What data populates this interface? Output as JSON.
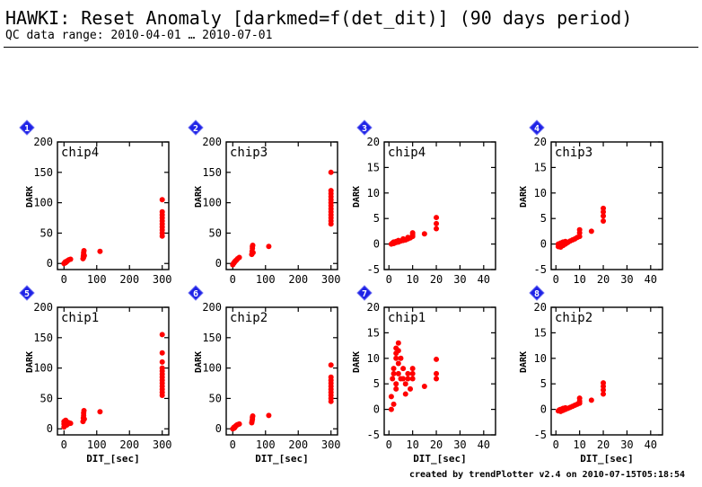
{
  "header": {
    "title": "HAWKI: Reset Anomaly [darkmed=f(det_dit)] (90 days period)",
    "subtitle": "QC data range: 2010-04-01 … 2010-07-01"
  },
  "footer": {
    "credit": "created by trendPlotter v2.4 on 2010-07-15T05:18:54"
  },
  "colors": {
    "marker": "#ff0000",
    "badge": "#1e22e6",
    "axis": "#000000"
  },
  "chart_data": [
    {
      "badge": "1",
      "type": "scatter",
      "label": "chip4",
      "ylabel": "DARK",
      "xlabel": "",
      "xlim": [
        -20,
        320
      ],
      "ylim": [
        -10,
        200
      ],
      "xticks": [
        0,
        100,
        200,
        300
      ],
      "yticks": [
        0,
        50,
        100,
        150,
        200
      ],
      "points": [
        [
          0,
          0
        ],
        [
          2,
          1
        ],
        [
          3,
          2
        ],
        [
          4,
          1
        ],
        [
          5,
          3
        ],
        [
          6,
          2
        ],
        [
          8,
          3
        ],
        [
          10,
          4
        ],
        [
          12,
          5
        ],
        [
          15,
          6
        ],
        [
          20,
          7
        ],
        [
          58,
          8
        ],
        [
          59,
          12
        ],
        [
          60,
          15
        ],
        [
          60,
          18
        ],
        [
          61,
          21
        ],
        [
          62,
          13
        ],
        [
          60,
          10
        ],
        [
          110,
          20
        ],
        [
          300,
          45
        ],
        [
          300,
          50
        ],
        [
          300,
          55
        ],
        [
          300,
          60
        ],
        [
          300,
          65
        ],
        [
          300,
          70
        ],
        [
          300,
          75
        ],
        [
          300,
          80
        ],
        [
          300,
          85
        ],
        [
          300,
          105
        ]
      ]
    },
    {
      "badge": "2",
      "type": "scatter",
      "label": "chip3",
      "ylabel": "DARK",
      "xlabel": "",
      "xlim": [
        -20,
        320
      ],
      "ylim": [
        -10,
        200
      ],
      "xticks": [
        0,
        100,
        200,
        300
      ],
      "yticks": [
        0,
        50,
        100,
        150,
        200
      ],
      "points": [
        [
          0,
          -2
        ],
        [
          2,
          0
        ],
        [
          4,
          1
        ],
        [
          5,
          2
        ],
        [
          6,
          3
        ],
        [
          8,
          4
        ],
        [
          10,
          5
        ],
        [
          12,
          6
        ],
        [
          15,
          8
        ],
        [
          20,
          10
        ],
        [
          58,
          15
        ],
        [
          59,
          20
        ],
        [
          60,
          25
        ],
        [
          60,
          28
        ],
        [
          61,
          30
        ],
        [
          62,
          18
        ],
        [
          110,
          28
        ],
        [
          300,
          65
        ],
        [
          300,
          70
        ],
        [
          300,
          75
        ],
        [
          300,
          80
        ],
        [
          300,
          85
        ],
        [
          300,
          90
        ],
        [
          300,
          95
        ],
        [
          300,
          100
        ],
        [
          300,
          105
        ],
        [
          300,
          110
        ],
        [
          300,
          115
        ],
        [
          300,
          120
        ],
        [
          300,
          150
        ]
      ]
    },
    {
      "badge": "3",
      "type": "scatter",
      "label": "chip4",
      "ylabel": "DARK",
      "xlabel": "",
      "xlim": [
        -2,
        45
      ],
      "ylim": [
        -5,
        20
      ],
      "xticks": [
        0,
        10,
        20,
        30,
        40
      ],
      "yticks": [
        -5,
        0,
        5,
        10,
        15,
        20
      ],
      "points": [
        [
          1,
          0
        ],
        [
          1.5,
          0.2
        ],
        [
          2,
          0.1
        ],
        [
          2,
          0.4
        ],
        [
          3,
          0.3
        ],
        [
          3,
          0.5
        ],
        [
          4,
          0.4
        ],
        [
          4,
          0.7
        ],
        [
          5,
          0.6
        ],
        [
          6,
          0.7
        ],
        [
          6,
          1
        ],
        [
          7,
          0.8
        ],
        [
          8,
          1
        ],
        [
          8,
          1.3
        ],
        [
          9,
          1.2
        ],
        [
          10,
          1.5
        ],
        [
          10,
          1.8
        ],
        [
          10,
          2.2
        ],
        [
          15,
          2
        ],
        [
          20,
          3
        ],
        [
          20,
          4
        ],
        [
          20,
          5.2
        ]
      ]
    },
    {
      "badge": "4",
      "type": "scatter",
      "label": "chip3",
      "ylabel": "DARK",
      "xlabel": "",
      "xlim": [
        -2,
        45
      ],
      "ylim": [
        -5,
        20
      ],
      "xticks": [
        0,
        10,
        20,
        30,
        40
      ],
      "yticks": [
        -5,
        0,
        5,
        10,
        15,
        20
      ],
      "points": [
        [
          1,
          -0.5
        ],
        [
          1,
          0
        ],
        [
          1.5,
          -0.2
        ],
        [
          2,
          -0.6
        ],
        [
          2,
          0.2
        ],
        [
          3,
          -0.3
        ],
        [
          3,
          0.4
        ],
        [
          4,
          0
        ],
        [
          4,
          0.5
        ],
        [
          5,
          0.3
        ],
        [
          6,
          0.6
        ],
        [
          7,
          0.8
        ],
        [
          8,
          1
        ],
        [
          9,
          1.3
        ],
        [
          10,
          1.5
        ],
        [
          10,
          2.2
        ],
        [
          10,
          2.8
        ],
        [
          15,
          2.5
        ],
        [
          20,
          4.5
        ],
        [
          20,
          5.5
        ],
        [
          20,
          6.3
        ],
        [
          20,
          7
        ]
      ]
    },
    {
      "badge": "5",
      "type": "scatter",
      "label": "chip1",
      "ylabel": "DARK",
      "xlabel": "DIT_[sec]",
      "xlim": [
        -20,
        320
      ],
      "ylim": [
        -10,
        200
      ],
      "xticks": [
        0,
        100,
        200,
        300
      ],
      "yticks": [
        0,
        50,
        100,
        150,
        200
      ],
      "points": [
        [
          0,
          3
        ],
        [
          0,
          8
        ],
        [
          0,
          12
        ],
        [
          2,
          5
        ],
        [
          3,
          10
        ],
        [
          4,
          7
        ],
        [
          5,
          14
        ],
        [
          6,
          9
        ],
        [
          8,
          6
        ],
        [
          10,
          11
        ],
        [
          12,
          8
        ],
        [
          15,
          10
        ],
        [
          20,
          9
        ],
        [
          58,
          12
        ],
        [
          59,
          18
        ],
        [
          60,
          22
        ],
        [
          60,
          26
        ],
        [
          61,
          30
        ],
        [
          62,
          16
        ],
        [
          110,
          28
        ],
        [
          300,
          55
        ],
        [
          300,
          60
        ],
        [
          300,
          65
        ],
        [
          300,
          70
        ],
        [
          300,
          75
        ],
        [
          300,
          80
        ],
        [
          300,
          85
        ],
        [
          300,
          90
        ],
        [
          300,
          95
        ],
        [
          300,
          100
        ],
        [
          300,
          110
        ],
        [
          300,
          125
        ],
        [
          300,
          155
        ]
      ]
    },
    {
      "badge": "6",
      "type": "scatter",
      "label": "chip2",
      "ylabel": "DARK",
      "xlabel": "DIT_[sec]",
      "xlim": [
        -20,
        320
      ],
      "ylim": [
        -10,
        200
      ],
      "xticks": [
        0,
        100,
        200,
        300
      ],
      "yticks": [
        0,
        50,
        100,
        150,
        200
      ],
      "points": [
        [
          0,
          0
        ],
        [
          2,
          1
        ],
        [
          3,
          2
        ],
        [
          4,
          1
        ],
        [
          5,
          3
        ],
        [
          6,
          2
        ],
        [
          8,
          4
        ],
        [
          10,
          5
        ],
        [
          12,
          6
        ],
        [
          15,
          7
        ],
        [
          20,
          8
        ],
        [
          58,
          10
        ],
        [
          59,
          13
        ],
        [
          60,
          16
        ],
        [
          60,
          19
        ],
        [
          61,
          21
        ],
        [
          110,
          22
        ],
        [
          300,
          45
        ],
        [
          300,
          50
        ],
        [
          300,
          55
        ],
        [
          300,
          60
        ],
        [
          300,
          65
        ],
        [
          300,
          70
        ],
        [
          300,
          75
        ],
        [
          300,
          80
        ],
        [
          300,
          85
        ],
        [
          300,
          105
        ]
      ]
    },
    {
      "badge": "7",
      "type": "scatter",
      "label": "chip1",
      "ylabel": "DARK",
      "xlabel": "DIT_[sec]",
      "xlim": [
        -2,
        45
      ],
      "ylim": [
        -5,
        20
      ],
      "xticks": [
        0,
        10,
        20,
        30,
        40
      ],
      "yticks": [
        -5,
        0,
        5,
        10,
        15,
        20
      ],
      "points": [
        [
          1,
          0
        ],
        [
          1,
          2.5
        ],
        [
          1.5,
          6
        ],
        [
          2,
          7
        ],
        [
          2,
          8
        ],
        [
          2,
          1
        ],
        [
          3,
          12
        ],
        [
          3,
          11
        ],
        [
          3,
          10
        ],
        [
          3,
          5
        ],
        [
          3,
          4
        ],
        [
          4,
          13
        ],
        [
          4,
          11.5
        ],
        [
          4,
          9
        ],
        [
          4,
          7
        ],
        [
          5,
          10
        ],
        [
          5,
          6
        ],
        [
          6,
          8
        ],
        [
          6,
          6
        ],
        [
          7,
          5
        ],
        [
          7,
          3
        ],
        [
          8,
          7
        ],
        [
          8,
          6
        ],
        [
          9,
          4
        ],
        [
          10,
          8
        ],
        [
          10,
          6
        ],
        [
          10,
          7
        ],
        [
          15,
          4.5
        ],
        [
          20,
          6
        ],
        [
          20,
          7
        ],
        [
          20,
          9.8
        ]
      ]
    },
    {
      "badge": "8",
      "type": "scatter",
      "label": "chip2",
      "ylabel": "DARK",
      "xlabel": "DIT_[sec]",
      "xlim": [
        -2,
        45
      ],
      "ylim": [
        -5,
        20
      ],
      "xticks": [
        0,
        10,
        20,
        30,
        40
      ],
      "yticks": [
        -5,
        0,
        5,
        10,
        15,
        20
      ],
      "points": [
        [
          1,
          -0.3
        ],
        [
          1.5,
          -0.1
        ],
        [
          2,
          -0.4
        ],
        [
          2,
          0
        ],
        [
          3,
          -0.2
        ],
        [
          3,
          0.2
        ],
        [
          4,
          0
        ],
        [
          4,
          0.3
        ],
        [
          5,
          0.2
        ],
        [
          6,
          0.4
        ],
        [
          7,
          0.6
        ],
        [
          8,
          0.8
        ],
        [
          9,
          1
        ],
        [
          10,
          1.2
        ],
        [
          10,
          1.6
        ],
        [
          10,
          2.2
        ],
        [
          15,
          1.8
        ],
        [
          20,
          3
        ],
        [
          20,
          3.8
        ],
        [
          20,
          4.5
        ],
        [
          20,
          5.2
        ]
      ]
    }
  ]
}
